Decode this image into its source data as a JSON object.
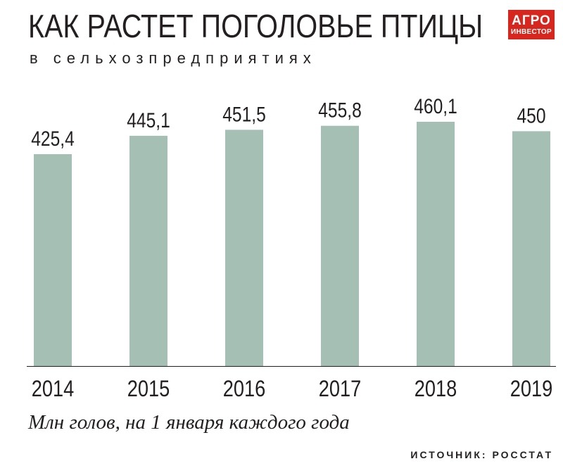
{
  "header": {
    "title": "КАК РАСТЕТ ПОГОЛОВЬЕ ПТИЦЫ",
    "subtitle": "в сельхозпредприятиях"
  },
  "logo": {
    "line1": "АГРО",
    "line2": "ИНВЕСТОР"
  },
  "footer": {
    "caption": "Млн голов, на 1 января каждого года",
    "source": "ИСТОЧНИК: РОССТАТ"
  },
  "colors": {
    "bar": "#a5bfb5",
    "text": "#231f20",
    "logo": "#d7261e"
  },
  "chart_data": {
    "type": "bar",
    "categories": [
      "2014",
      "2015",
      "2016",
      "2017",
      "2018",
      "2019"
    ],
    "values": [
      425.4,
      445.1,
      451.5,
      455.8,
      460.1,
      450
    ],
    "value_labels": [
      "425,4",
      "445,1",
      "451,5",
      "455,8",
      "460,1",
      "450"
    ],
    "title": "КАК РАСТЕТ ПОГОЛОВЬЕ ПТИЦЫ",
    "subtitle": "в сельхозпредприятиях",
    "xlabel": "",
    "ylabel": "",
    "ylim": [
      0,
      460.1
    ],
    "grid": false,
    "legend": "none"
  }
}
